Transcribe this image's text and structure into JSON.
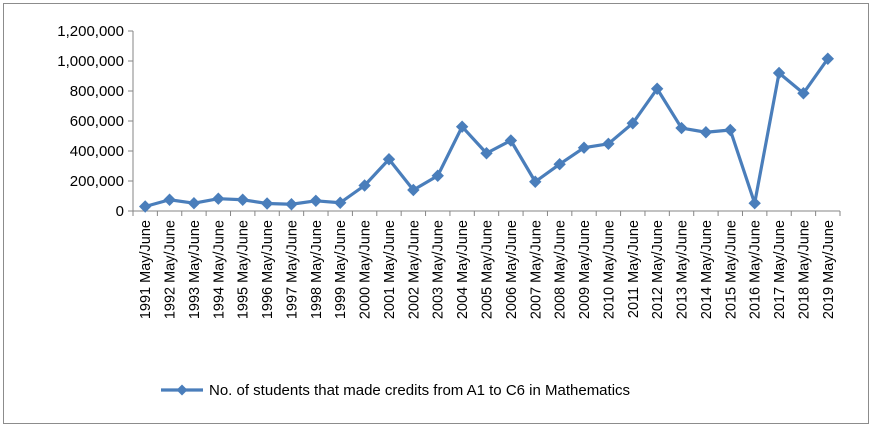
{
  "chart_data": {
    "type": "line",
    "title": "",
    "xlabel": "",
    "ylabel": "",
    "categories": [
      "1991 May/June",
      "1992 May/June",
      "1993 May/June",
      "1994 May/June",
      "1995 May/June",
      "1996 May/June",
      "1997 May/June",
      "1998 May/June",
      "1999 May/June",
      "2000 May/June",
      "2001 May/June",
      "2002 May/June",
      "2003 May/June",
      "2004 May/June",
      "2005 May/June",
      "2006 May/June",
      "2007 May/June",
      "2008 May/June",
      "2009 May/June",
      "2010 May/June",
      "2011 May/June",
      "2012 May/June",
      "2013 May/June",
      "2014 May/June",
      "2015 May/June",
      "2016 May/June",
      "2017 May/June",
      "2018 May/June",
      "2019 May/June"
    ],
    "series": [
      {
        "name": "No. of students that made credits from A1 to C6 in Mathematics",
        "color": "#4a7ebb",
        "marker": "diamond",
        "values": [
          30000,
          75000,
          52000,
          82000,
          75000,
          50000,
          45000,
          68000,
          55000,
          170000,
          345000,
          140000,
          235000,
          562000,
          385000,
          470000,
          195000,
          312000,
          422000,
          448000,
          585000,
          815000,
          553000,
          525000,
          540000,
          52000,
          920000,
          785000,
          1015000
        ]
      }
    ],
    "ylim": [
      0,
      1200000
    ],
    "yticks": [
      0,
      200000,
      400000,
      600000,
      800000,
      1000000,
      1200000
    ],
    "ytick_labels": [
      "0",
      "200,000",
      "400,000",
      "600,000",
      "800,000",
      "1,000,000",
      "1,200,000"
    ],
    "grid": false,
    "legend_position": "bottom"
  }
}
